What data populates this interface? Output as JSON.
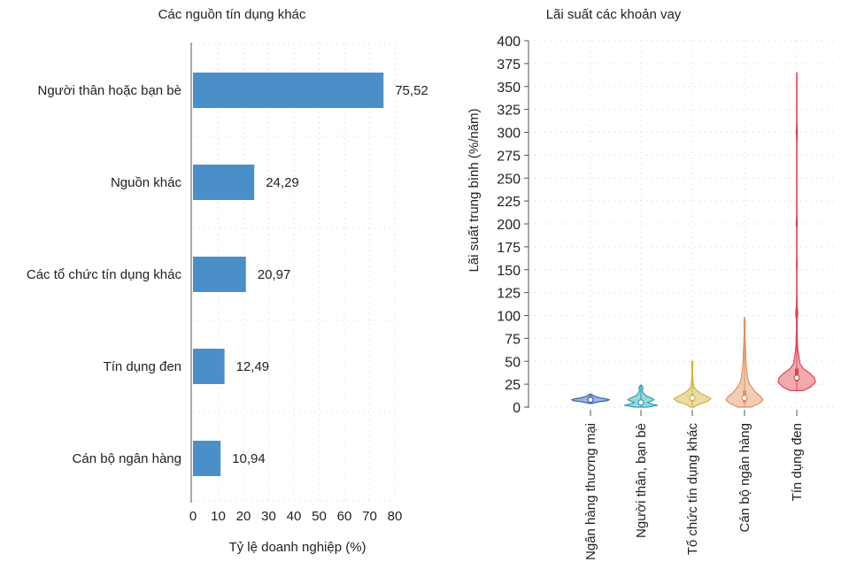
{
  "chart_data": [
    {
      "type": "bar",
      "orientation": "horizontal",
      "title": "Các nguồn tín dụng khác",
      "xlabel": "Tỷ lệ doanh nghiệp (%)",
      "ylabel": "",
      "xlim": [
        0,
        80
      ],
      "x_ticks": [
        0,
        10,
        20,
        30,
        40,
        50,
        60,
        70,
        80
      ],
      "x_tick_labels": [
        "0",
        "10",
        "20",
        "30",
        "40",
        "50",
        "60",
        "70",
        "80"
      ],
      "grid": true,
      "color": "#4a8fc7",
      "categories": [
        "Người thân hoặc bạn bè",
        "Nguồn khác",
        "Các tổ chức tín dụng khác",
        "Tín dụng đen",
        "Cán bộ ngân hàng"
      ],
      "values": [
        75.52,
        24.29,
        20.97,
        12.49,
        10.94
      ],
      "value_labels": [
        "75,52",
        "24,29",
        "20,97",
        "12,49",
        "10,94"
      ]
    },
    {
      "type": "violin",
      "title": "Lãi suất các khoản vay",
      "xlabel": "",
      "ylabel": "Lãi suất trung bình (%/năm)",
      "ylim": [
        0,
        400
      ],
      "y_ticks": [
        0,
        25,
        50,
        75,
        100,
        125,
        150,
        175,
        200,
        225,
        250,
        275,
        300,
        325,
        350,
        375,
        400
      ],
      "y_tick_labels": [
        "0",
        "25",
        "50",
        "75",
        "100",
        "125",
        "150",
        "175",
        "200",
        "225",
        "250",
        "275",
        "300",
        "325",
        "350",
        "375",
        "400"
      ],
      "grid": true,
      "categories": [
        "Ngân hàng thương mại",
        "Người thân, bạn bè",
        "Tổ chức tín dụng khác",
        "Cán bộ ngân hàng",
        "Tín dụng đen"
      ],
      "series": [
        {
          "color": "#2e5ca8",
          "min": 4,
          "q1": 7,
          "median": 8,
          "q3": 10,
          "max": 14,
          "density": [
            [
              4,
              0.05
            ],
            [
              6,
              0.5
            ],
            [
              7,
              0.9
            ],
            [
              8,
              1.0
            ],
            [
              9,
              0.85
            ],
            [
              10,
              0.5
            ],
            [
              12,
              0.2
            ],
            [
              14,
              0.05
            ]
          ]
        },
        {
          "color": "#2aa1b3",
          "min": 0,
          "q1": 3,
          "median": 5,
          "q3": 8,
          "max": 24,
          "density": [
            [
              0,
              0.35
            ],
            [
              2,
              0.9
            ],
            [
              4,
              0.45
            ],
            [
              5,
              0.35
            ],
            [
              6,
              0.5
            ],
            [
              8,
              0.7
            ],
            [
              10,
              0.55
            ],
            [
              12,
              0.3
            ],
            [
              15,
              0.15
            ],
            [
              18,
              0.06
            ],
            [
              21,
              0.12
            ],
            [
              24,
              0.03
            ]
          ]
        },
        {
          "color": "#d1b23b",
          "min": 0,
          "q1": 6,
          "median": 10,
          "q3": 14,
          "max": 50,
          "density": [
            [
              0,
              0.1
            ],
            [
              3,
              0.35
            ],
            [
              6,
              0.8
            ],
            [
              9,
              1.0
            ],
            [
              12,
              0.75
            ],
            [
              15,
              0.45
            ],
            [
              18,
              0.25
            ],
            [
              22,
              0.08
            ],
            [
              26,
              0.05
            ],
            [
              30,
              0.04
            ],
            [
              35,
              0.02
            ],
            [
              40,
              0.02
            ],
            [
              46,
              0.03
            ],
            [
              50,
              0.04
            ]
          ]
        },
        {
          "color": "#e0915c",
          "min": 0,
          "q1": 5,
          "median": 10,
          "q3": 18,
          "max": 98,
          "density": [
            [
              0,
              0.35
            ],
            [
              4,
              0.8
            ],
            [
              8,
              1.0
            ],
            [
              12,
              0.85
            ],
            [
              16,
              0.6
            ],
            [
              20,
              0.45
            ],
            [
              25,
              0.28
            ],
            [
              30,
              0.18
            ],
            [
              40,
              0.12
            ],
            [
              50,
              0.07
            ],
            [
              60,
              0.06
            ],
            [
              70,
              0.04
            ],
            [
              80,
              0.02
            ],
            [
              90,
              0.03
            ],
            [
              98,
              0.01
            ]
          ]
        },
        {
          "color": "#e0444f",
          "min": 18,
          "q1": 28,
          "median": 32,
          "q3": 42,
          "max": 365,
          "density": [
            [
              18,
              0.35
            ],
            [
              22,
              0.75
            ],
            [
              27,
              1.0
            ],
            [
              32,
              0.95
            ],
            [
              37,
              0.7
            ],
            [
              42,
              0.35
            ],
            [
              47,
              0.18
            ],
            [
              52,
              0.14
            ],
            [
              57,
              0.1
            ],
            [
              62,
              0.06
            ],
            [
              68,
              0.04
            ],
            [
              75,
              0.03
            ],
            [
              85,
              0.02
            ],
            [
              95,
              0.02
            ],
            [
              102,
              0.06
            ],
            [
              110,
              0.02
            ],
            [
              125,
              0.01
            ],
            [
              150,
              0.01
            ],
            [
              155,
              0.02
            ],
            [
              165,
              0.01
            ],
            [
              195,
              0.01
            ],
            [
              200,
              0.03
            ],
            [
              210,
              0.01
            ],
            [
              290,
              0.01
            ],
            [
              300,
              0.03
            ],
            [
              310,
              0.01
            ],
            [
              350,
              0.01
            ],
            [
              365,
              0.01
            ]
          ]
        }
      ]
    }
  ]
}
